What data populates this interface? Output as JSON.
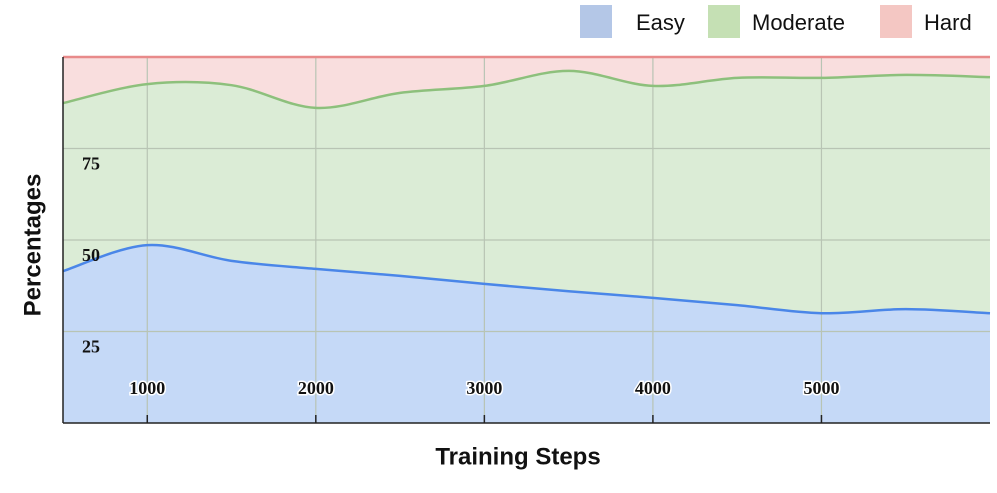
{
  "chart_data": {
    "type": "stacked_area",
    "x_label": "Training Steps",
    "y_label": "Percentages",
    "x": [
      500,
      1000,
      1500,
      2000,
      2500,
      3000,
      3500,
      4000,
      4500,
      5000,
      5500,
      6000
    ],
    "series": [
      {
        "name": "Easy",
        "color": "#4a86e8",
        "fill": "#c5d9f7",
        "legend_color": "#b4c7e7",
        "values": [
          41.5,
          48.6,
          44.3,
          42.1,
          40.2,
          38.0,
          36.0,
          34.2,
          32.2,
          30.0,
          31.1,
          30.0
        ]
      },
      {
        "name": "Moderate",
        "color": "#8dc07c",
        "fill": "#dbecd6",
        "legend_color": "#c5e0b4",
        "values": [
          45.9,
          44.0,
          48.0,
          44.0,
          50.0,
          54.1,
          60.2,
          57.9,
          62.1,
          64.3,
          64.0,
          64.5
        ]
      },
      {
        "name": "Hard",
        "color": "#e88a8a",
        "fill": "#f9dede",
        "legend_color": "#f4c7c3",
        "values": [
          12.6,
          7.4,
          7.7,
          13.9,
          9.8,
          7.9,
          3.8,
          7.9,
          5.7,
          5.7,
          4.9,
          5.5
        ]
      }
    ],
    "xlim": [
      500,
      6000
    ],
    "xticks": [
      1000,
      2000,
      3000,
      4000,
      5000
    ],
    "ylim": [
      0,
      100
    ],
    "yticks": [
      25,
      50,
      75
    ],
    "grid": true,
    "legend": "top-right"
  }
}
